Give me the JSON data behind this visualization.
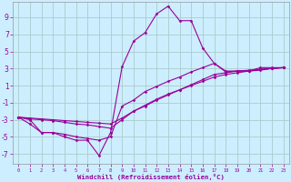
{
  "bg_color": "#cceeff",
  "line_color": "#990099",
  "grid_color": "#aacccc",
  "xlabel": "Windchill (Refroidissement éolien,°C)",
  "ylabel_ticks": [
    -7,
    -5,
    -3,
    -1,
    1,
    3,
    5,
    7,
    9
  ],
  "xlim": [
    -0.5,
    23.5
  ],
  "ylim": [
    -8.2,
    10.8
  ],
  "xtick_labels": [
    "0",
    "1",
    "2",
    "3",
    "4",
    "5",
    "6",
    "7",
    "8",
    "9",
    "10",
    "11",
    "12",
    "13",
    "14",
    "15",
    "16",
    "17",
    "18",
    "19",
    "20",
    "21",
    "22",
    "23"
  ],
  "series": [
    {
      "x": [
        0,
        1,
        2,
        3,
        4,
        5,
        6,
        7,
        8,
        9,
        10,
        11,
        12,
        13,
        14,
        15,
        16,
        17,
        18,
        19,
        20,
        21,
        22,
        23
      ],
      "y": [
        -2.7,
        -3.5,
        -4.5,
        -4.5,
        -5.0,
        -5.4,
        -5.4,
        -7.2,
        -4.5,
        3.2,
        6.2,
        7.2,
        9.4,
        10.3,
        8.6,
        8.6,
        5.4,
        3.6,
        2.7,
        2.7,
        2.7,
        3.1,
        3.1,
        3.1
      ]
    },
    {
      "x": [
        0,
        1,
        2,
        3,
        4,
        5,
        6,
        7,
        8,
        9,
        10,
        11,
        12,
        13,
        14,
        15,
        16,
        17,
        18,
        19,
        20,
        21,
        22,
        23
      ],
      "y": [
        -2.7,
        -3.0,
        -4.5,
        -4.5,
        -4.7,
        -5.0,
        -5.2,
        -5.4,
        -5.0,
        -1.4,
        -0.7,
        0.3,
        0.9,
        1.5,
        2.0,
        2.6,
        3.1,
        3.6,
        2.6,
        2.7,
        2.7,
        2.8,
        3.0,
        3.1
      ]
    },
    {
      "x": [
        0,
        1,
        2,
        3,
        4,
        5,
        6,
        7,
        8,
        9,
        10,
        11,
        12,
        13,
        14,
        15,
        16,
        17,
        18,
        19,
        20,
        21,
        22,
        23
      ],
      "y": [
        -2.7,
        -2.9,
        -3.0,
        -3.1,
        -3.3,
        -3.5,
        -3.6,
        -3.8,
        -4.0,
        -3.0,
        -2.0,
        -1.4,
        -0.7,
        -0.1,
        0.5,
        1.1,
        1.7,
        2.3,
        2.5,
        2.7,
        2.8,
        2.9,
        3.0,
        3.1
      ]
    },
    {
      "x": [
        0,
        1,
        2,
        3,
        4,
        5,
        6,
        7,
        8,
        9,
        10,
        11,
        12,
        13,
        14,
        15,
        16,
        17,
        18,
        19,
        20,
        21,
        22,
        23
      ],
      "y": [
        -2.7,
        -2.8,
        -2.9,
        -3.0,
        -3.1,
        -3.2,
        -3.3,
        -3.4,
        -3.5,
        -2.8,
        -2.0,
        -1.3,
        -0.6,
        0.0,
        0.5,
        1.0,
        1.5,
        2.0,
        2.3,
        2.5,
        2.7,
        2.9,
        3.0,
        3.1
      ]
    }
  ]
}
